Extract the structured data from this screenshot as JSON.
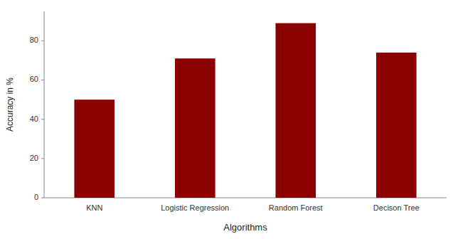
{
  "chart_data": {
    "type": "bar",
    "categories": [
      "KNN",
      "Logistic Regression",
      "Random Forest",
      "Decison Tree"
    ],
    "values": [
      50,
      71,
      89,
      74
    ],
    "color": "#8B0000",
    "xlabel": "Algorithms",
    "ylabel": "Accuracy in %",
    "ylim": [
      0,
      95
    ],
    "yticks": [
      0,
      20,
      40,
      60,
      80
    ],
    "grid": false
  }
}
